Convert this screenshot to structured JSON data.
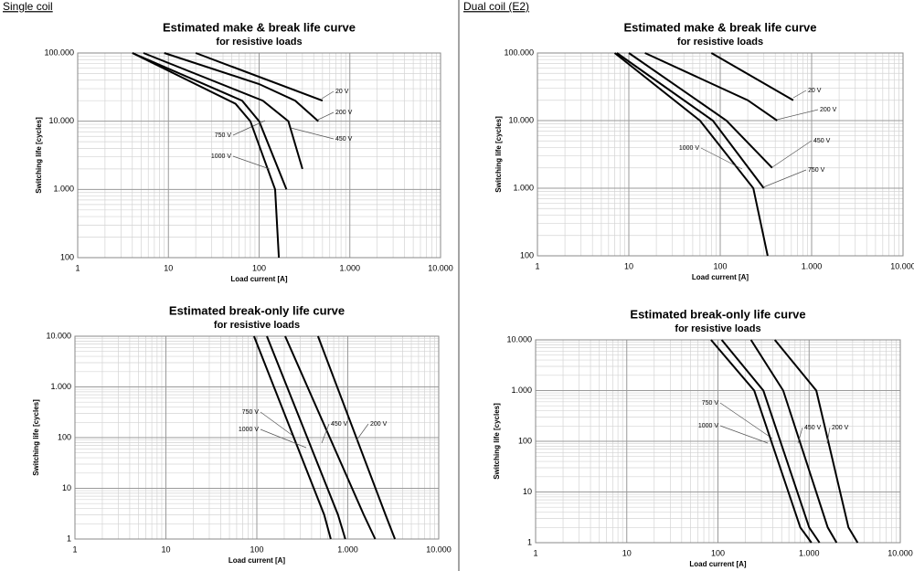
{
  "headings": [
    "Single coil",
    "Dual coil (E2)"
  ],
  "chart_data": [
    {
      "type": "line",
      "title": "Estimated make & break life curve",
      "subtitle": "for resistive loads",
      "xlabel": "Load current [A]",
      "ylabel": "Switching life [cycles]",
      "log_x": true,
      "log_y": true,
      "grid": true,
      "xlim": [
        1,
        10000
      ],
      "ylim": [
        100,
        100000
      ],
      "xticks": [
        1,
        10,
        100,
        {
          "value": 1000,
          "label": "1.000"
        },
        {
          "value": 10000,
          "label": "10.000"
        }
      ],
      "yticks": [
        100,
        {
          "value": 1000,
          "label": "1.000"
        },
        {
          "value": 10000,
          "label": "10.000"
        },
        {
          "value": 100000,
          "label": "100.000"
        }
      ],
      "series": [
        {
          "name": "20 V",
          "color": "#000000",
          "x": [
            20,
            500
          ],
          "values": [
            100000,
            20000
          ]
        },
        {
          "name": "200 V",
          "color": "#000000",
          "x": [
            9,
            100,
            250,
            450
          ],
          "values": [
            100000,
            35000,
            20000,
            10000
          ]
        },
        {
          "name": "450 V",
          "color": "#000000",
          "x": [
            5.3,
            110,
            210,
            300
          ],
          "values": [
            100000,
            20000,
            10000,
            2000
          ]
        },
        {
          "name": "750 V",
          "color": "#000000",
          "x": [
            4,
            65,
            100,
            200
          ],
          "values": [
            100000,
            20000,
            10000,
            1000
          ]
        },
        {
          "name": "1000 V",
          "color": "#000000",
          "x": [
            4,
            55,
            80,
            150,
            165
          ],
          "values": [
            100000,
            18000,
            10000,
            1000,
            100
          ]
        }
      ]
    },
    {
      "type": "line",
      "title": "Estimated make & break life curve",
      "subtitle": "for resistive loads",
      "xlabel": "Load current [A]",
      "ylabel": "Switching life [cycles]",
      "log_x": true,
      "log_y": true,
      "grid": true,
      "xlim": [
        1,
        10000
      ],
      "ylim": [
        100,
        100000
      ],
      "xticks": [
        1,
        10,
        100,
        {
          "value": 1000,
          "label": "1.000"
        },
        {
          "value": 10000,
          "label": "10.000"
        }
      ],
      "yticks": [
        100,
        {
          "value": 1000,
          "label": "1.000"
        },
        {
          "value": 10000,
          "label": "10.000"
        },
        {
          "value": 100000,
          "label": "100.000"
        }
      ],
      "series": [
        {
          "name": "20 V",
          "color": "#000000",
          "x": [
            80,
            630
          ],
          "values": [
            100000,
            20000
          ]
        },
        {
          "name": "200 V",
          "color": "#000000",
          "x": [
            15,
            200,
            420
          ],
          "values": [
            100000,
            20000,
            10000
          ]
        },
        {
          "name": "450 V",
          "color": "#000000",
          "x": [
            10,
            117,
            370
          ],
          "values": [
            100000,
            10000,
            2000
          ]
        },
        {
          "name": "750 V",
          "color": "#000000",
          "x": [
            7.4,
            83,
            300
          ],
          "values": [
            100000,
            10000,
            1000
          ]
        },
        {
          "name": "1000 V",
          "color": "#000000",
          "x": [
            7,
            60,
            230,
            330
          ],
          "values": [
            100000,
            10000,
            1000,
            100
          ]
        }
      ]
    },
    {
      "type": "line",
      "title": "Estimated break-only life curve",
      "subtitle": "for resistive loads",
      "xlabel": "Load current [A]",
      "ylabel": "Switching life [cycles]",
      "log_x": true,
      "log_y": true,
      "grid": true,
      "xlim": [
        1,
        10000
      ],
      "ylim": [
        1,
        10000
      ],
      "xticks": [
        1,
        10,
        100,
        {
          "value": 1000,
          "label": "1.000"
        },
        {
          "value": 10000,
          "label": "10.000"
        }
      ],
      "yticks": [
        1,
        10,
        100,
        {
          "value": 1000,
          "label": "1.000"
        },
        {
          "value": 10000,
          "label": "10.000"
        }
      ],
      "series": [
        {
          "name": "200 V",
          "color": "#000000",
          "x": [
            470,
            2600,
            3300
          ],
          "values": [
            10000,
            3,
            1
          ]
        },
        {
          "name": "450 V",
          "color": "#000000",
          "x": [
            205,
            1500,
            2000
          ],
          "values": [
            10000,
            3,
            1
          ]
        },
        {
          "name": "750 V",
          "color": "#000000",
          "x": [
            129,
            780,
            940
          ],
          "values": [
            10000,
            3,
            1
          ]
        },
        {
          "name": "1000 V",
          "color": "#000000",
          "x": [
            93,
            550,
            650
          ],
          "values": [
            10000,
            3,
            1
          ]
        }
      ]
    },
    {
      "type": "line",
      "title": "Estimated break-only life curve",
      "subtitle": "for resistive loads",
      "xlabel": "Load current [A]",
      "ylabel": "Switching life [cycles]",
      "log_x": true,
      "log_y": true,
      "grid": true,
      "xlim": [
        1,
        10000
      ],
      "ylim": [
        1,
        10000
      ],
      "xticks": [
        1,
        10,
        100,
        {
          "value": 1000,
          "label": "1.000"
        },
        {
          "value": 10000,
          "label": "10.000"
        }
      ],
      "yticks": [
        1,
        10,
        100,
        {
          "value": 1000,
          "label": "1.000"
        },
        {
          "value": 10000,
          "label": "10.000"
        }
      ],
      "series": [
        {
          "name": "200 V",
          "color": "#000000",
          "x": [
            420,
            1200,
            2700,
            3400
          ],
          "values": [
            10000,
            1000,
            2,
            1
          ]
        },
        {
          "name": "450 V",
          "color": "#000000",
          "x": [
            230,
            520,
            1600,
            2000
          ],
          "values": [
            10000,
            1000,
            2,
            1
          ]
        },
        {
          "name": "750 V",
          "color": "#000000",
          "x": [
            110,
            315,
            1000,
            1300
          ],
          "values": [
            10000,
            1000,
            2,
            1
          ]
        },
        {
          "name": "1000 V",
          "color": "#000000",
          "x": [
            84,
            250,
            800,
            1060
          ],
          "values": [
            10000,
            1000,
            2,
            1
          ]
        }
      ]
    }
  ]
}
